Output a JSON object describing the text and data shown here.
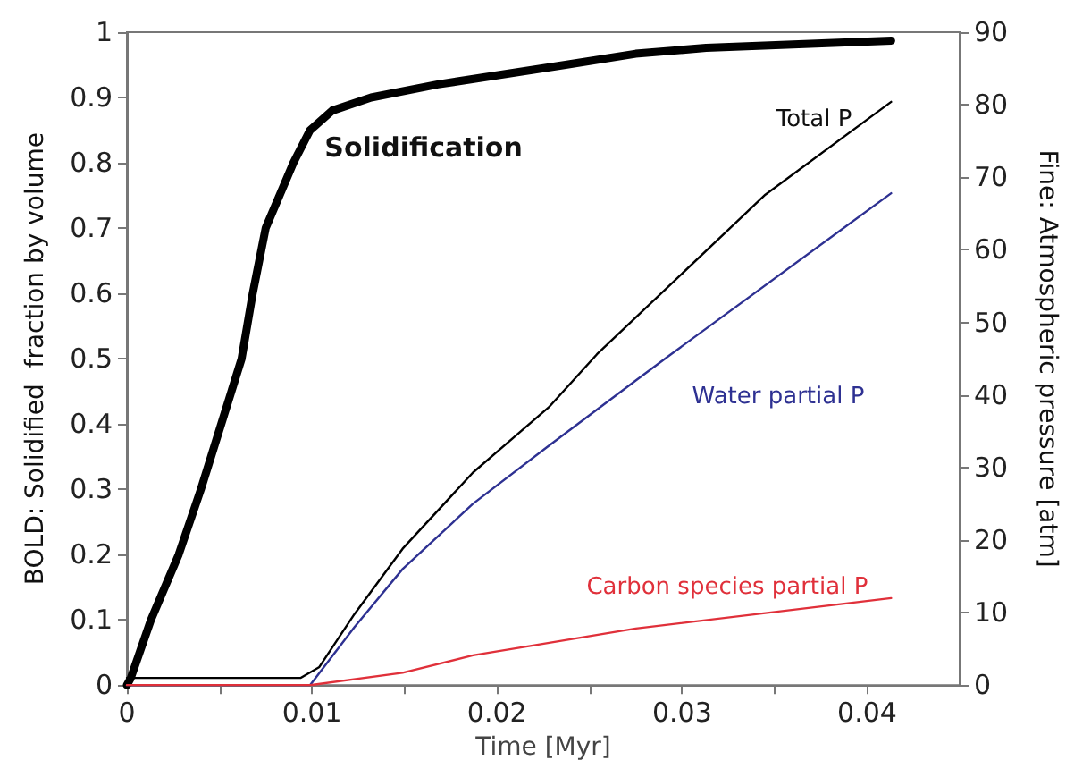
{
  "chart_data": {
    "type": "line",
    "xlabel": "Time [Myr]",
    "ylabel": "BOLD: Solidified  fraction by volume",
    "y2label": "Fine: Atmospheric pressure [atm]",
    "xlim": [
      0,
      0.045
    ],
    "xticks": [
      0,
      {
        "value": 0.005,
        "label": null
      },
      0.01,
      {
        "value": 0.015,
        "label": null
      },
      0.02,
      {
        "value": 0.025,
        "label": null
      },
      0.03,
      {
        "value": 0.035,
        "label": null
      },
      0.04
    ],
    "ylim": [
      0,
      1
    ],
    "yticks": [
      0,
      0.1,
      0.2,
      0.3,
      0.4,
      0.5,
      0.6,
      0.7,
      0.8,
      0.9,
      1
    ],
    "y2lim": [
      0,
      90
    ],
    "y2ticks": [
      0,
      10,
      20,
      30,
      40,
      50,
      60,
      70,
      80,
      90
    ],
    "grid": false,
    "legend": false,
    "marker": "none",
    "line_style": "solid",
    "series": [
      {
        "name": "Solidification",
        "color": "#000000",
        "x": [
          0,
          0.0002,
          0.0013,
          0.0028,
          0.004,
          0.0051,
          0.0062,
          0.0068,
          0.0075,
          0.009,
          0.0099,
          0.0111,
          0.0132,
          0.0168,
          0.0237,
          0.0275,
          0.0313,
          0.0413
        ],
        "values": [
          0,
          0.01,
          0.1,
          0.2,
          0.3,
          0.4,
          0.5,
          0.6,
          0.7,
          0.8,
          0.85,
          0.88,
          0.9,
          0.92,
          0.95,
          0.967,
          0.976,
          0.987
        ]
      },
      {
        "name": "Total P",
        "color": "#000000",
        "axis": "y2",
        "x": [
          0,
          0.0094,
          0.0104,
          0.0123,
          0.0149,
          0.0187,
          0.0228,
          0.0254,
          0.0345,
          0.0413
        ],
        "values": [
          1,
          1,
          2.5,
          9.8,
          18.8,
          29.3,
          38.3,
          45.6,
          67.6,
          80.4
        ]
      },
      {
        "name": "Water partial P",
        "color": "#2e3192",
        "axis": "y2",
        "x": [
          0,
          0.0099,
          0.0123,
          0.0149,
          0.0187,
          0.0228,
          0.0275,
          0.0294,
          0.0413
        ],
        "values": [
          0,
          0,
          8,
          16,
          25,
          33,
          42,
          45.6,
          67.8
        ]
      },
      {
        "name": "Carbon species partial P",
        "color": "#e0303a",
        "axis": "y2",
        "x": [
          0,
          0.0099,
          0.0149,
          0.0187,
          0.0218,
          0.0275,
          0.0413
        ],
        "values": [
          0,
          0,
          1.7,
          4.1,
          5.4,
          7.8,
          12
        ]
      }
    ]
  }
}
